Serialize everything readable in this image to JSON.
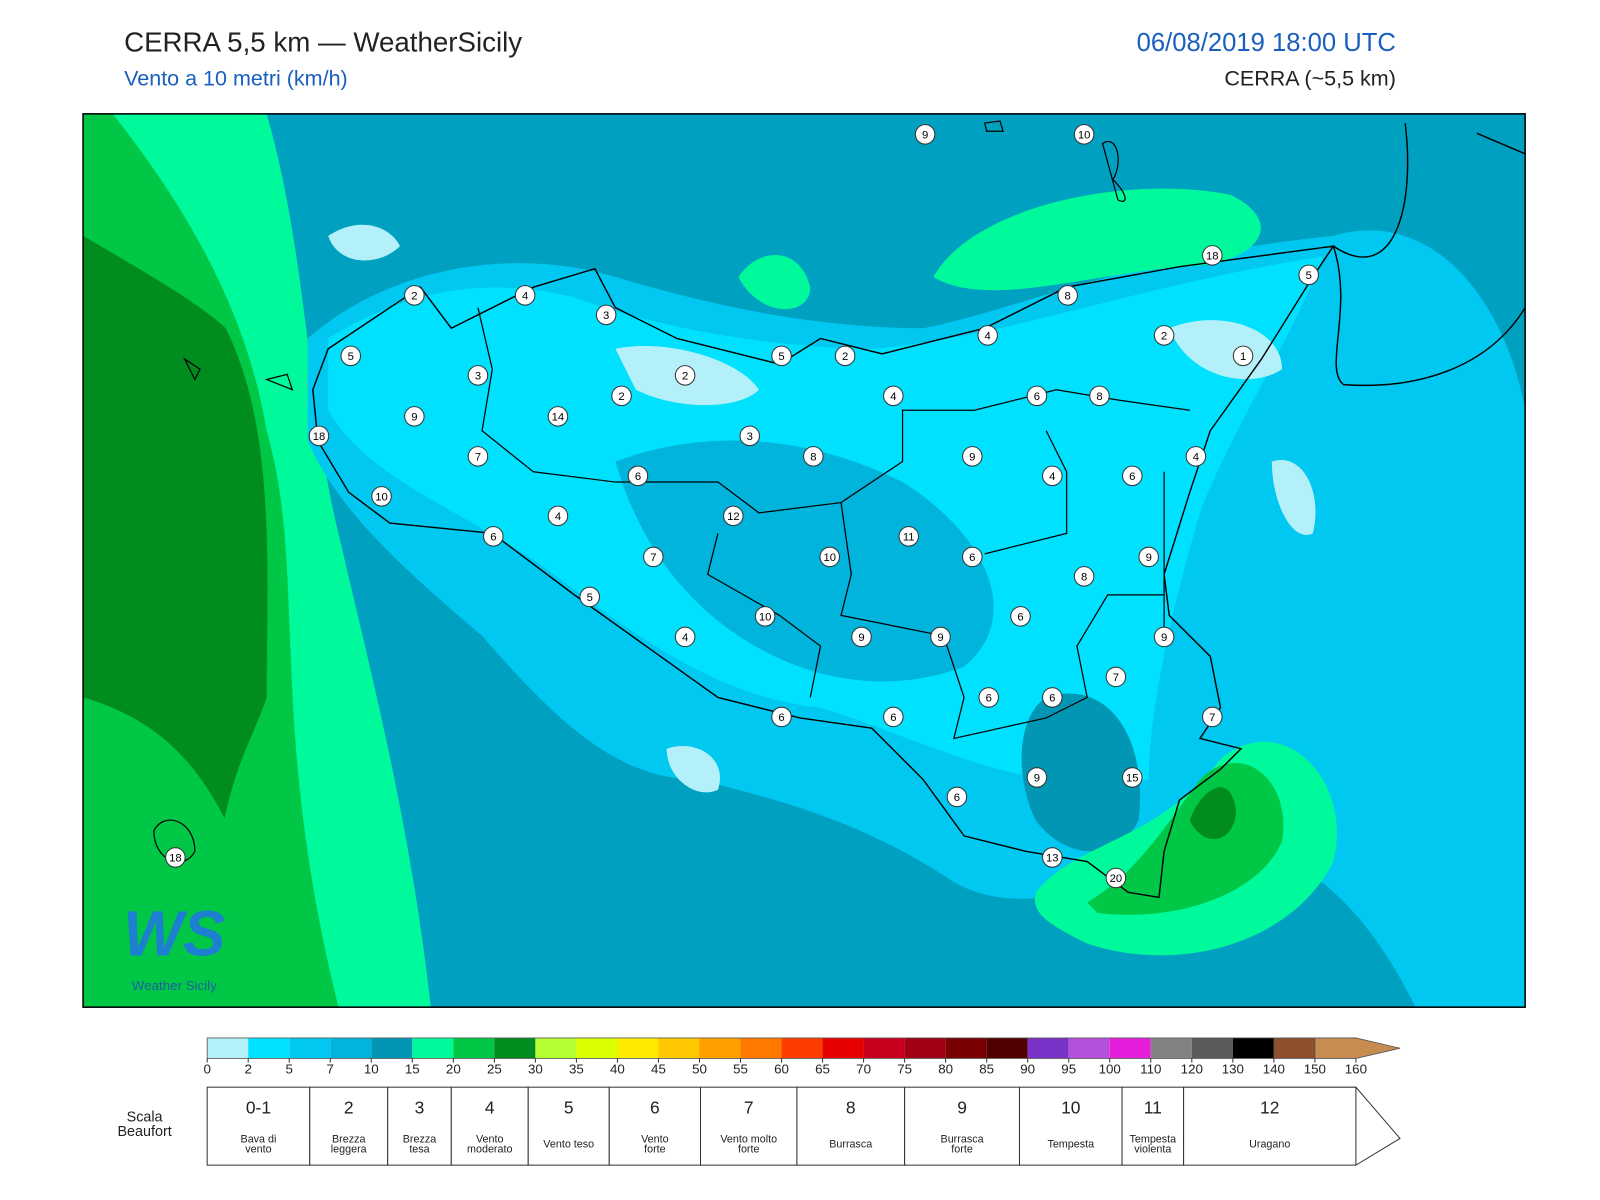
{
  "header": {
    "title": "CERRA 5,5 km — WeatherSicily",
    "subtitle": "Vento a 10 metri (km/h)",
    "datetime": "06/08/2019 18:00 UTC",
    "model": "CERRA (~5,5 km)"
  },
  "map": {
    "stations": [
      9,
      10,
      18,
      5,
      8,
      4,
      2,
      1,
      2,
      4,
      3,
      5,
      5,
      2,
      3,
      2,
      2,
      4,
      6,
      8,
      9,
      14,
      18,
      3,
      7,
      8,
      9,
      4,
      6,
      4,
      6,
      10,
      4,
      12,
      11,
      6,
      7,
      10,
      6,
      9,
      8,
      5,
      10,
      6,
      4,
      9,
      9,
      9,
      7,
      6,
      6,
      6,
      6,
      7,
      9,
      15,
      6,
      18,
      13,
      20
    ]
  },
  "logo": {
    "mark": "WS",
    "name": "Weather Sicily"
  },
  "colorbar": {
    "ticks": [
      0,
      2,
      5,
      7,
      10,
      15,
      20,
      25,
      30,
      35,
      40,
      45,
      50,
      55,
      60,
      65,
      70,
      75,
      80,
      85,
      90,
      95,
      100,
      110,
      120,
      130,
      140,
      150,
      160
    ],
    "colors": [
      "#b4f0fa",
      "#00e1ff",
      "#00c8f0",
      "#00b4dc",
      "#0096b4",
      "#00fa9b",
      "#00c846",
      "#008c1e",
      "#b4ff32",
      "#dcff00",
      "#ffeb00",
      "#ffc800",
      "#ffa000",
      "#ff7800",
      "#ff3c00",
      "#e60000",
      "#c8001e",
      "#a00014",
      "#780000",
      "#500000",
      "#7832c8",
      "#b450dc",
      "#e61edc",
      "#828282",
      "#5a5a5a",
      "#000000",
      "#8c502d",
      "#c88c50"
    ]
  },
  "beaufort": {
    "title": [
      "Scala",
      "Beaufort"
    ],
    "levels": [
      {
        "force": "0-1",
        "description": [
          "Bava di",
          "vento"
        ]
      },
      {
        "force": "2",
        "description": [
          "Brezza",
          "leggera"
        ]
      },
      {
        "force": "3",
        "description": [
          "Brezza",
          "tesa"
        ]
      },
      {
        "force": "4",
        "description": [
          "Vento",
          "moderato"
        ]
      },
      {
        "force": "5",
        "description": [
          "Vento teso"
        ]
      },
      {
        "force": "6",
        "description": [
          "Vento",
          "forte"
        ]
      },
      {
        "force": "7",
        "description": [
          "Vento molto",
          "forte"
        ]
      },
      {
        "force": "8",
        "description": [
          "Burrasca"
        ]
      },
      {
        "force": "9",
        "description": [
          "Burrasca",
          "forte"
        ]
      },
      {
        "force": "10",
        "description": [
          "Tempesta"
        ]
      },
      {
        "force": "11",
        "description": [
          "Tempesta",
          "violenta"
        ]
      },
      {
        "force": "12",
        "description": [
          "Uragano"
        ]
      }
    ]
  }
}
